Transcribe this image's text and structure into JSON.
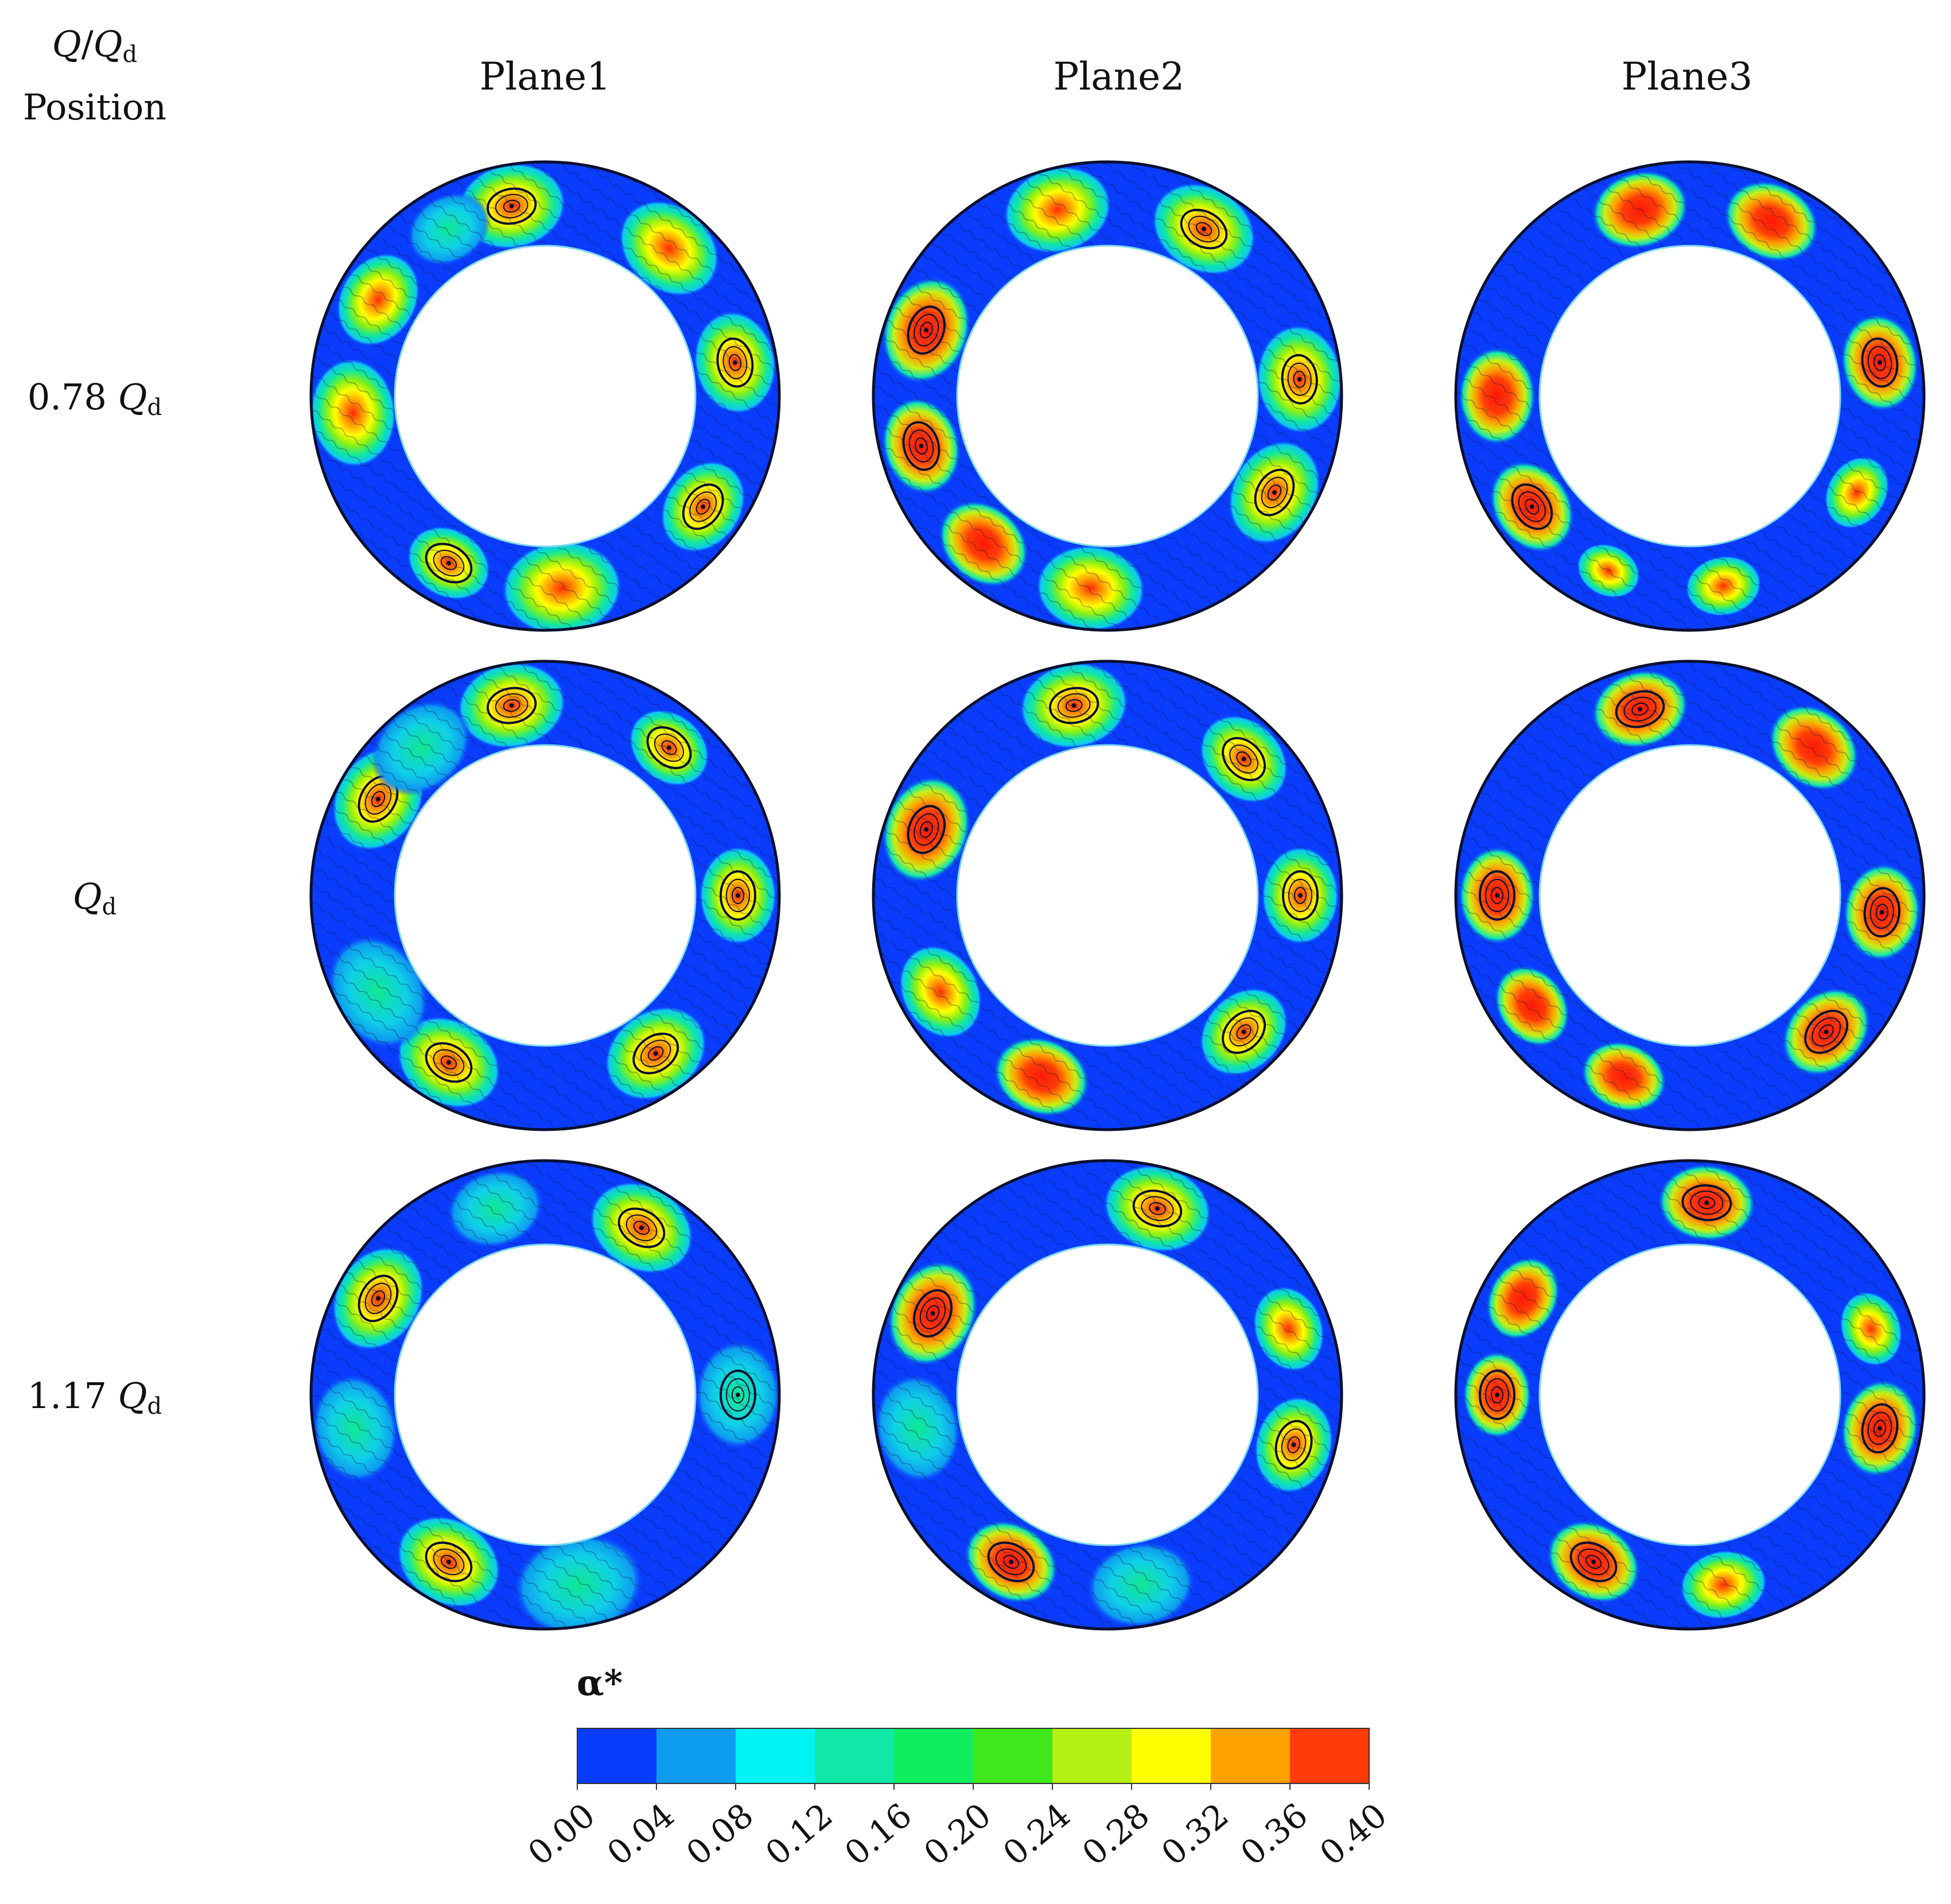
{
  "header": {
    "q_ratio": {
      "q": "Q",
      "slash": "/",
      "qd": "Q",
      "d": "d"
    },
    "position": "Position"
  },
  "columns": [
    "Plane1",
    "Plane2",
    "Plane3"
  ],
  "rows": [
    {
      "value": "0.78",
      "q": "Q",
      "d": "d"
    },
    {
      "value": "",
      "q": "Q",
      "d": "d"
    },
    {
      "value": "1.17",
      "q": "Q",
      "d": "d"
    }
  ],
  "colorbar": {
    "title": "α*",
    "ticks": [
      "0.00",
      "0.04",
      "0.08",
      "0.12",
      "0.16",
      "0.20",
      "0.24",
      "0.28",
      "0.32",
      "0.36",
      "0.40"
    ],
    "colors": [
      "#0a3cff",
      "#0e9cf0",
      "#00f4f4",
      "#10e8a8",
      "#10ee60",
      "#3ee81c",
      "#b4f014",
      "#ffff00",
      "#ffa200",
      "#ff3c08"
    ]
  },
  "colors": {
    "background_blue": "#0a3cff",
    "streamline": "#0b1030"
  }
}
